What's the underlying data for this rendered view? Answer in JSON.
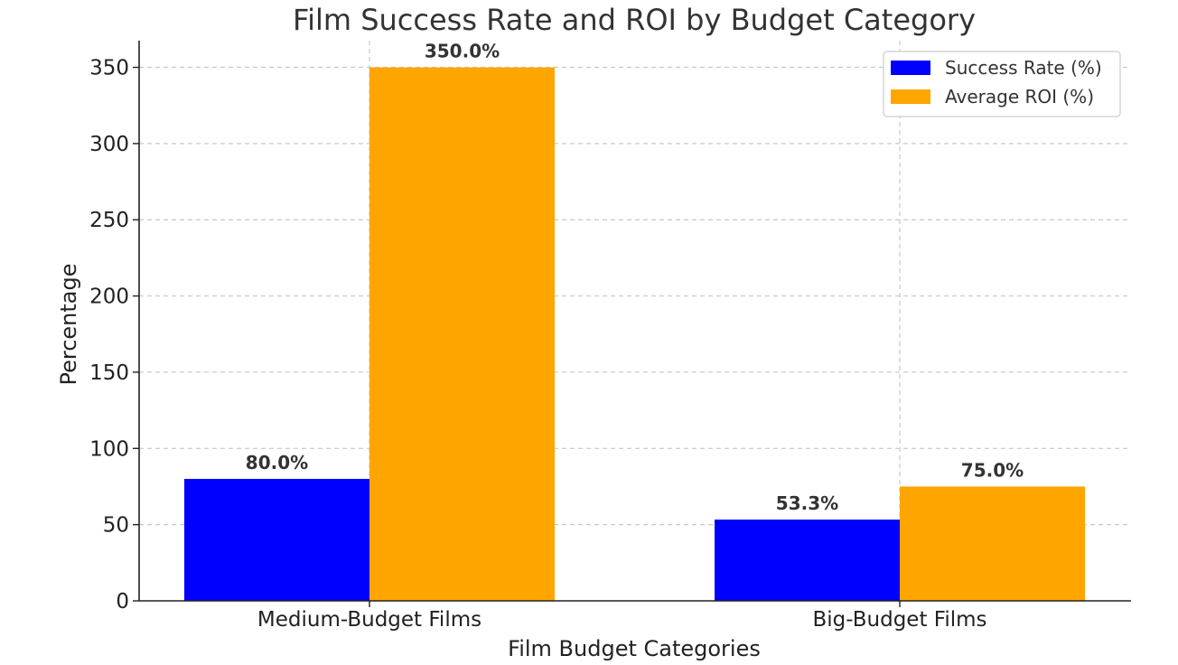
{
  "chart_data": {
    "type": "bar",
    "title": "Film Success Rate and ROI by Budget Category",
    "xlabel": "Film Budget Categories",
    "ylabel": "Percentage",
    "categories": [
      "Medium-Budget Films",
      "Big-Budget Films"
    ],
    "series": [
      {
        "name": "Success Rate (%)",
        "values": [
          80.0,
          53.3
        ],
        "labels": [
          "80.0%",
          "53.3%"
        ],
        "color": "#0000ff"
      },
      {
        "name": "Average ROI (%)",
        "values": [
          350.0,
          75.0
        ],
        "labels": [
          "350.0%",
          "75.0%"
        ],
        "color": "#ffa500"
      }
    ],
    "ylim": [
      0,
      367.5
    ],
    "yticks": [
      0,
      50,
      100,
      150,
      200,
      250,
      300,
      350
    ],
    "grid": true,
    "legend": "top-right"
  }
}
